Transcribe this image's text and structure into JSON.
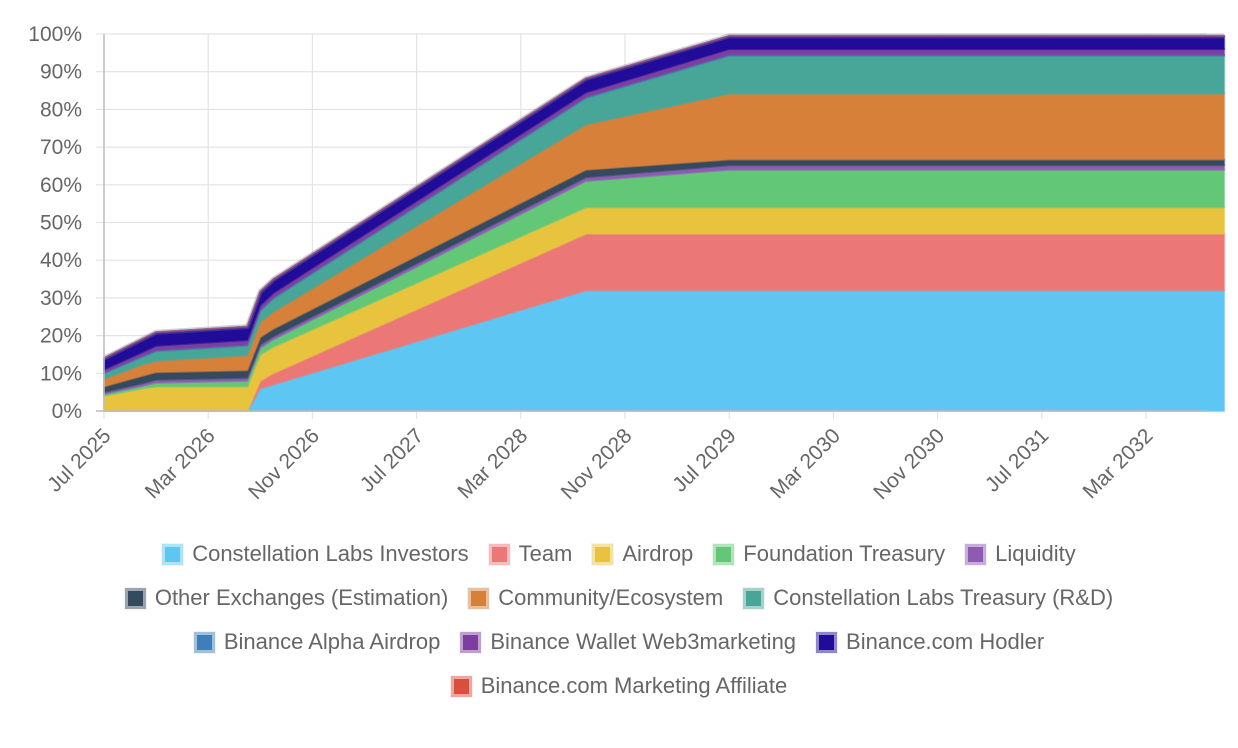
{
  "chart_data": {
    "type": "area",
    "stacked": true,
    "y_ticks": [
      "0%",
      "10%",
      "20%",
      "30%",
      "40%",
      "50%",
      "60%",
      "70%",
      "80%",
      "90%",
      "100%"
    ],
    "ylim": [
      0,
      100
    ],
    "x_ticks": [
      "Jul 2025",
      "Mar 2026",
      "Nov 2026",
      "Jul 2027",
      "Mar 2028",
      "Nov 2028",
      "Jul 2029",
      "Mar 2030",
      "Nov 2030",
      "Jul 2031",
      "Mar 2032"
    ],
    "x": [
      "Jul 2025",
      "Oct 2025",
      "Nov 2025",
      "Jun 2026",
      "Jul 2026",
      "Aug 2026",
      "Aug 2028",
      "Jul 2029",
      "Sep 2032"
    ],
    "grid": true,
    "legend_position": "bottom",
    "series": [
      {
        "name": "Constellation Labs Investors",
        "color": "#5ec6f2",
        "values": [
          0,
          0,
          0,
          0,
          6,
          7,
          32,
          32,
          32
        ]
      },
      {
        "name": "Team",
        "color": "#eb7876",
        "values": [
          0,
          0,
          0,
          0,
          2,
          3,
          15,
          15,
          15
        ]
      },
      {
        "name": "Airdrop",
        "color": "#e8c43e",
        "values": [
          4,
          6,
          6.5,
          6.5,
          7,
          7,
          7,
          7,
          7
        ]
      },
      {
        "name": "Foundation Treasury",
        "color": "#62c878",
        "values": [
          0.5,
          0.7,
          1,
          1.5,
          1.8,
          2,
          7,
          10,
          10
        ]
      },
      {
        "name": "Liquidity",
        "color": "#8e5bb3",
        "values": [
          0.5,
          0.7,
          0.8,
          0.8,
          0.8,
          0.8,
          1,
          1.2,
          1.2
        ]
      },
      {
        "name": "Other Exchanges (Estimation)",
        "color": "#344a5f",
        "values": [
          1.5,
          2,
          2,
          2,
          2,
          2,
          2,
          1.5,
          1.5
        ]
      },
      {
        "name": "Community/Ecosystem",
        "color": "#d6803a",
        "values": [
          2,
          3,
          3,
          4,
          4,
          4.5,
          12,
          17.5,
          17.5
        ]
      },
      {
        "name": "Constellation Labs Treasury (R&D)",
        "color": "#47a697",
        "values": [
          1.5,
          2,
          2.5,
          2.5,
          3,
          3.5,
          7,
          10,
          10
        ]
      },
      {
        "name": "Binance Alpha Airdrop",
        "color": "#3f7fb8",
        "values": [
          0.2,
          0.3,
          0.3,
          0.3,
          0.3,
          0.3,
          0.3,
          0.3,
          0.3
        ]
      },
      {
        "name": "Binance Wallet Web3marketing",
        "color": "#7d3f9e",
        "values": [
          0.8,
          1,
          1.2,
          1.2,
          1.2,
          1.2,
          1.2,
          1.5,
          1.5
        ]
      },
      {
        "name": "Binance.com Hodler",
        "color": "#200c99",
        "values": [
          3,
          3.5,
          3.6,
          3.6,
          3.6,
          3.6,
          3.7,
          3.5,
          3.5
        ]
      },
      {
        "name": "Binance.com Marketing Affiliate",
        "color": "#d94e3d",
        "values": [
          0,
          0,
          0,
          0,
          0,
          0,
          0,
          0,
          0
        ]
      }
    ],
    "legend_rows": [
      [
        0,
        1,
        2,
        3,
        4
      ],
      [
        5,
        6,
        7
      ],
      [
        8,
        9,
        10
      ],
      [
        11
      ]
    ]
  }
}
